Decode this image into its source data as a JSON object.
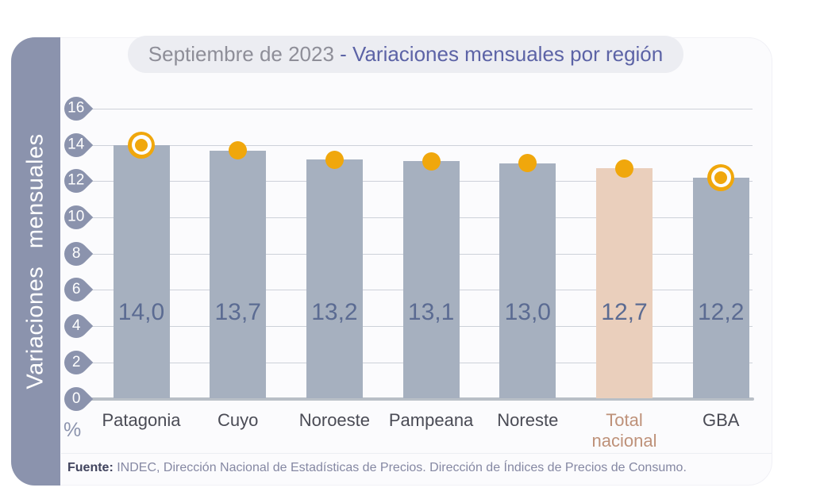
{
  "title": {
    "period": "Septiembre de 2023 ",
    "subject": "- Variaciones mensuales por región"
  },
  "sidebar_label": "Variaciones mensuales",
  "y_axis": {
    "ticks": [
      16,
      14,
      12,
      10,
      8,
      6,
      4,
      2,
      0
    ],
    "unit": "%"
  },
  "chart_data": {
    "type": "bar",
    "title": "Septiembre de 2023 - Variaciones mensuales por región",
    "ylabel": "Variaciones mensuales",
    "unit": "%",
    "ylim": [
      0,
      16
    ],
    "ytick_step": 2,
    "grid": true,
    "categories": [
      "Patagonia",
      "Cuyo",
      "Noroeste",
      "Pampeana",
      "Noreste",
      "Total nacional",
      "GBA"
    ],
    "values": [
      14.0,
      13.7,
      13.2,
      13.1,
      13.0,
      12.7,
      12.2
    ],
    "value_labels": [
      "14,0",
      "13,7",
      "13,2",
      "13,1",
      "13,0",
      "12,7",
      "12,2"
    ],
    "highlighted_category": "Total nacional",
    "marker_styles": [
      "ring",
      "dot",
      "dot",
      "dot",
      "dot",
      "dot",
      "ring"
    ]
  },
  "footer": {
    "source_label": "Fuente:",
    "source_text": " INDEC, Dirección Nacional de Estadísticas de Precios. Dirección de Índices de Precios de Consumo."
  },
  "colors": {
    "bar": "#a6b0bf",
    "bar_highlight": "#eacfbc",
    "marker": "#f0a70c",
    "tick_badge": "#8b93ad",
    "value_text": "#5b6b92",
    "label_text": "#4a4b55",
    "label_highlight": "#be9179",
    "grid": "#cdd1d9",
    "baseline": "#b9bfc7",
    "sidebar_bg": "#8b93ad",
    "pill_bg": "#ecedf2",
    "title_period": "#8e8e98",
    "title_subject": "#5c63a6",
    "footer_text": "#8588a3",
    "card_bg": "#fbfbfd"
  }
}
